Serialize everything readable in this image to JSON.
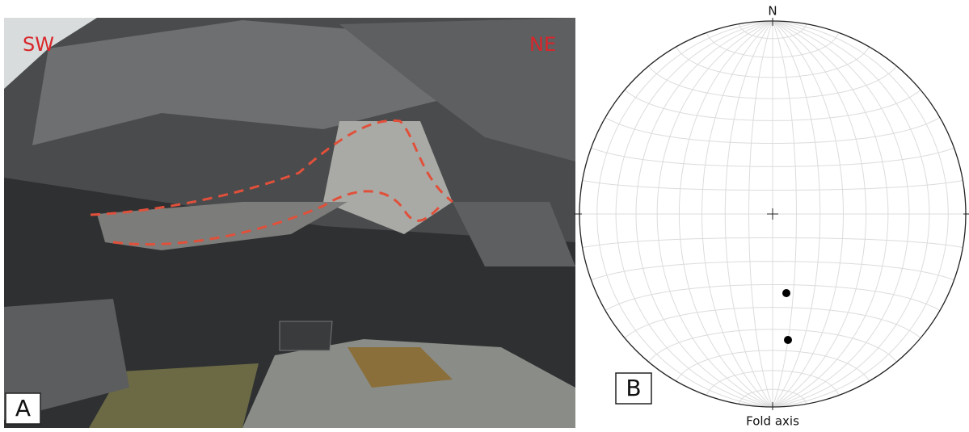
{
  "panels": [
    {
      "label": "A",
      "annotations": [
        "SW",
        "NE"
      ]
    },
    {
      "label": "B",
      "north": "N",
      "caption": "Fold axis"
    }
  ]
}
